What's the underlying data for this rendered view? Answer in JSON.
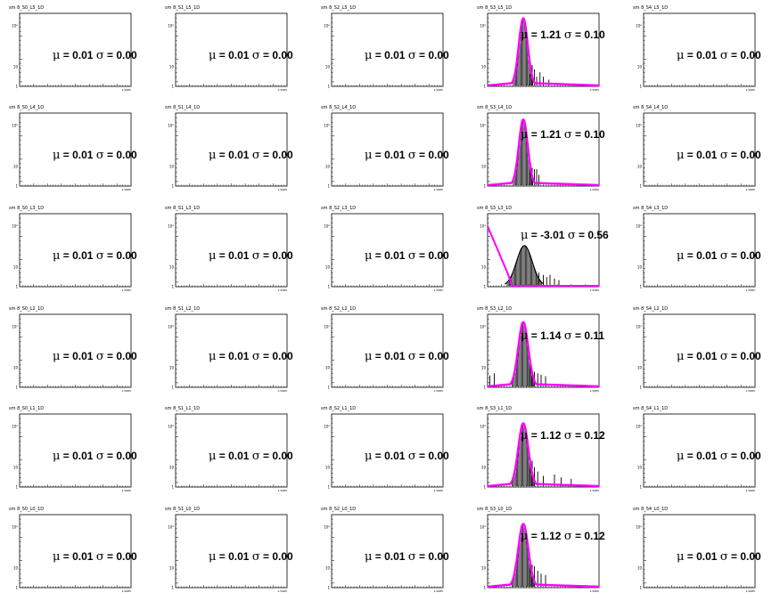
{
  "page": {
    "title": ""
  },
  "colors": {
    "fit": "#ff00ff",
    "histogram": "#000000",
    "frame": "#000000",
    "background": "#ffffff"
  },
  "chart_data": {
    "type": "histogram-grid",
    "grid": {
      "rows": 6,
      "cols": 5
    },
    "y_axis": {
      "scale": "log",
      "tick_labels": [
        "10²",
        "10",
        "1"
      ]
    },
    "x_axis": {
      "end_label": "1.5985"
    },
    "panels": [
      {
        "title": "sm 8_S0_L5_1D",
        "mu": "0.01",
        "sigma": "0.00",
        "has_data": false
      },
      {
        "title": "sm 8_S1_L5_1D",
        "mu": "0.01",
        "sigma": "0.00",
        "has_data": false
      },
      {
        "title": "sm 8_S2_L5_1D",
        "mu": "0.01",
        "sigma": "0.00",
        "has_data": false
      },
      {
        "title": "sm 8_S3_L5_1D",
        "mu": "1.21",
        "sigma": "0.10",
        "has_data": true,
        "variant": "normal",
        "peak": {
          "center": 0.32,
          "width": 0.04,
          "height": 0.92
        },
        "tail_bins": [
          [
            0.38,
            0.16
          ],
          [
            0.4,
            0.28
          ],
          [
            0.42,
            0.22
          ],
          [
            0.44,
            0.12
          ],
          [
            0.47,
            0.18
          ],
          [
            0.5,
            0.12
          ],
          [
            0.55,
            0.08
          ]
        ]
      },
      {
        "title": "sm 8_S4_L5_1D",
        "mu": "0.01",
        "sigma": "0.00",
        "has_data": false
      },
      {
        "title": "sm 8_S0_L4_1D",
        "mu": "0.01",
        "sigma": "0.00",
        "has_data": false
      },
      {
        "title": "sm 8_S1_L4_1D",
        "mu": "0.01",
        "sigma": "0.00",
        "has_data": false
      },
      {
        "title": "sm 8_S2_L4_1D",
        "mu": "0.01",
        "sigma": "0.00",
        "has_data": false
      },
      {
        "title": "sm 8_S3_L4_1D",
        "mu": "1.21",
        "sigma": "0.10",
        "has_data": true,
        "variant": "normal",
        "peak": {
          "center": 0.32,
          "width": 0.04,
          "height": 0.9
        },
        "tail_bins": [
          [
            0.38,
            0.22
          ],
          [
            0.4,
            0.24
          ],
          [
            0.42,
            0.22
          ],
          [
            0.44,
            0.22
          ],
          [
            0.46,
            0.14
          ]
        ]
      },
      {
        "title": "sm 8_S4_L4_1D",
        "mu": "0.01",
        "sigma": "0.00",
        "has_data": false
      },
      {
        "title": "sm 8_S0_L3_1D",
        "mu": "0.01",
        "sigma": "0.00",
        "has_data": false
      },
      {
        "title": "sm 8_S1_L3_1D",
        "mu": "0.01",
        "sigma": "0.00",
        "has_data": false
      },
      {
        "title": "sm 8_S2_L3_1D",
        "mu": "0.01",
        "sigma": "0.00",
        "has_data": false
      },
      {
        "title": "sm 8_S3_L3_1D",
        "mu": "-3.01",
        "sigma": "0.56",
        "has_data": true,
        "variant": "broad",
        "peak": {
          "center": 0.33,
          "width": 0.07,
          "height": 0.55
        },
        "tail_bins": [
          [
            0.46,
            0.18
          ],
          [
            0.5,
            0.15
          ],
          [
            0.53,
            0.12
          ],
          [
            0.56,
            0.15
          ],
          [
            0.6,
            0.1
          ],
          [
            0.64,
            0.08
          ]
        ]
      },
      {
        "title": "sm 8_S4_L3_1D",
        "mu": "0.01",
        "sigma": "0.00",
        "has_data": false
      },
      {
        "title": "sm 8_S0_L2_1D",
        "mu": "0.01",
        "sigma": "0.00",
        "has_data": false
      },
      {
        "title": "sm 8_S1_L2_1D",
        "mu": "0.01",
        "sigma": "0.00",
        "has_data": false
      },
      {
        "title": "sm 8_S2_L2_1D",
        "mu": "0.01",
        "sigma": "0.00",
        "has_data": false
      },
      {
        "title": "sm 8_S3_L2_1D",
        "mu": "1.14",
        "sigma": "0.11",
        "has_data": true,
        "variant": "normal",
        "peak": {
          "center": 0.32,
          "width": 0.045,
          "height": 0.88
        },
        "tail_bins": [
          [
            0.38,
            0.32
          ],
          [
            0.4,
            0.24
          ],
          [
            0.42,
            0.2
          ],
          [
            0.45,
            0.18
          ],
          [
            0.48,
            0.16
          ],
          [
            0.52,
            0.14
          ],
          [
            0.02,
            0.15
          ],
          [
            0.06,
            0.18
          ]
        ]
      },
      {
        "title": "sm 8_S4_L2_1D",
        "mu": "0.01",
        "sigma": "0.00",
        "has_data": false
      },
      {
        "title": "sm 8_S0_L1_1D",
        "mu": "0.01",
        "sigma": "0.00",
        "has_data": false
      },
      {
        "title": "sm 8_S1_L1_1D",
        "mu": "0.01",
        "sigma": "0.00",
        "has_data": false
      },
      {
        "title": "sm 8_S2_L1_1D",
        "mu": "0.01",
        "sigma": "0.00",
        "has_data": false
      },
      {
        "title": "sm 8_S3_L1_1D",
        "mu": "1.12",
        "sigma": "0.12",
        "has_data": true,
        "variant": "normal",
        "peak": {
          "center": 0.32,
          "width": 0.045,
          "height": 0.86
        },
        "tail_bins": [
          [
            0.38,
            0.42
          ],
          [
            0.4,
            0.35
          ],
          [
            0.42,
            0.26
          ],
          [
            0.45,
            0.2
          ],
          [
            0.5,
            0.14
          ],
          [
            0.6,
            0.16
          ],
          [
            0.66,
            0.12
          ],
          [
            0.75,
            0.1
          ]
        ]
      },
      {
        "title": "sm 8_S4_L1_1D",
        "mu": "0.01",
        "sigma": "0.00",
        "has_data": false
      },
      {
        "title": "sm 8_S0_L0_1D",
        "mu": "0.01",
        "sigma": "0.00",
        "has_data": false
      },
      {
        "title": "sm 8_S1_L0_1D",
        "mu": "0.01",
        "sigma": "0.00",
        "has_data": false
      },
      {
        "title": "sm 8_S2_L0_1D",
        "mu": "0.01",
        "sigma": "0.00",
        "has_data": false
      },
      {
        "title": "sm 8_S3_L0_1D",
        "mu": "1.12",
        "sigma": "0.12",
        "has_data": true,
        "variant": "normal",
        "peak": {
          "center": 0.32,
          "width": 0.045,
          "height": 0.86
        },
        "tail_bins": [
          [
            0.38,
            0.42
          ],
          [
            0.4,
            0.3
          ],
          [
            0.42,
            0.28
          ],
          [
            0.45,
            0.22
          ],
          [
            0.48,
            0.18
          ],
          [
            0.52,
            0.16
          ]
        ]
      },
      {
        "title": "sm 8_S4_L0_1D",
        "mu": "0.01",
        "sigma": "0.00",
        "has_data": false
      }
    ]
  }
}
